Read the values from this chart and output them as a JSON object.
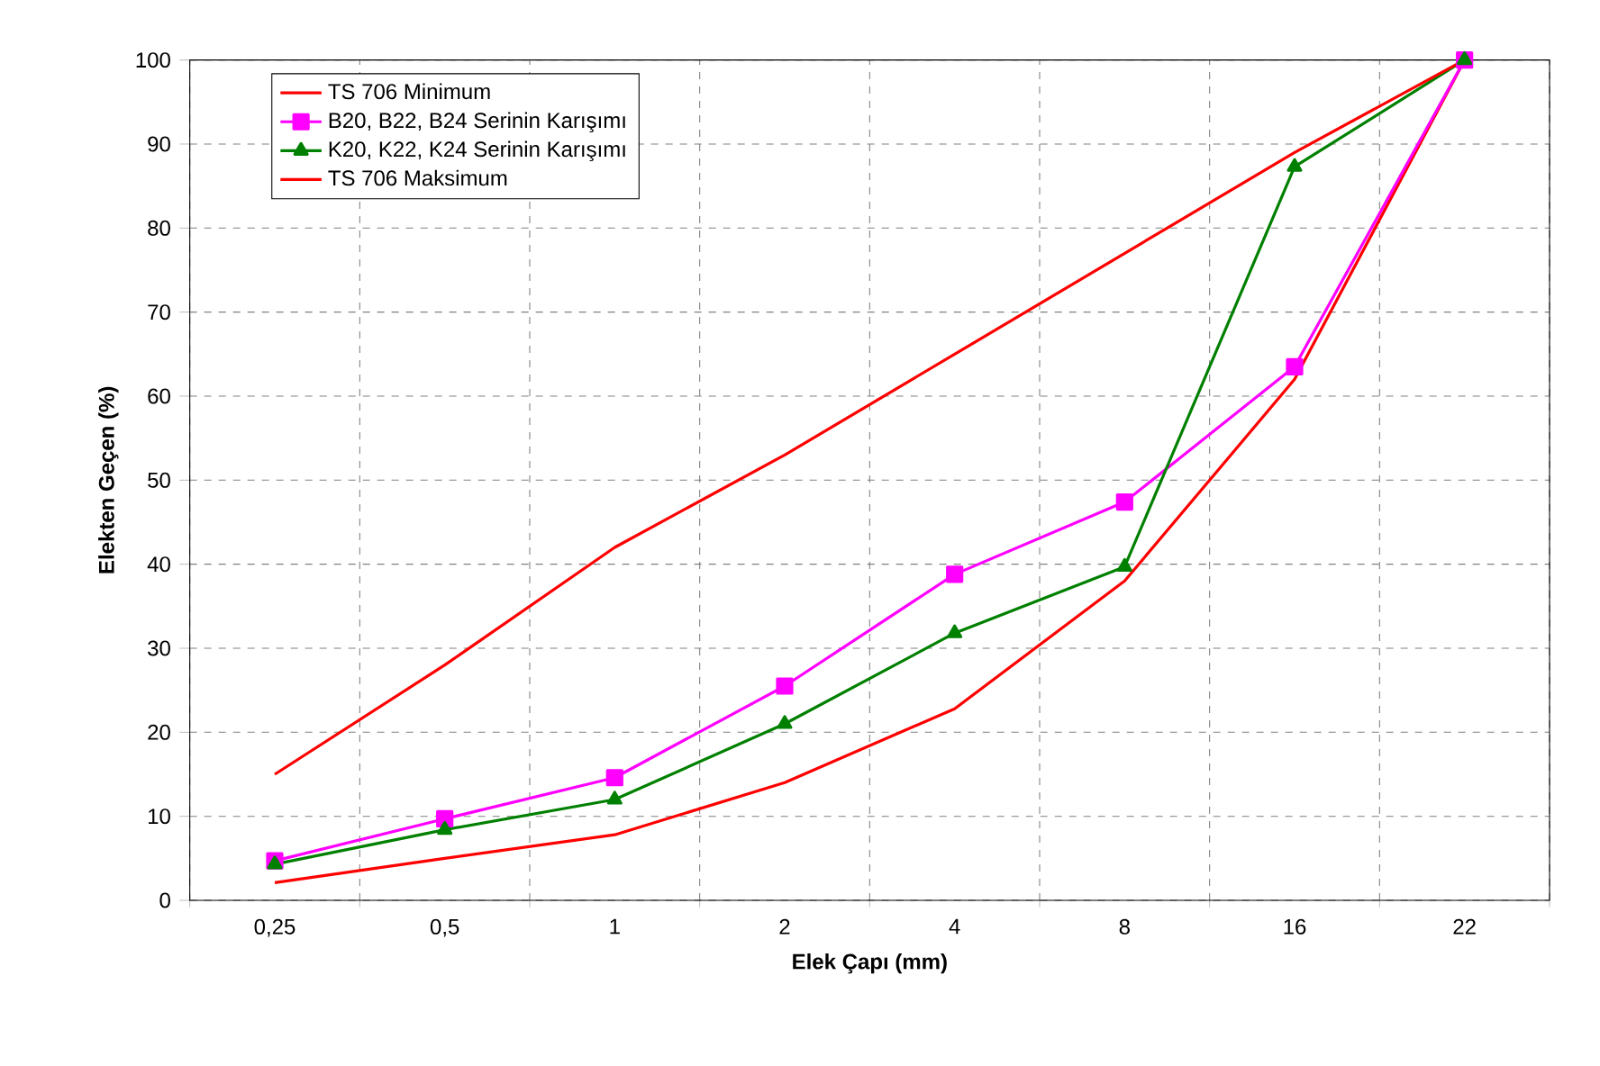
{
  "chart_data": {
    "type": "line",
    "xlabel": "Elek Çapı (mm)",
    "ylabel": "Elekten Geçen (%)",
    "categories": [
      "0,25",
      "0,5",
      "1",
      "2",
      "4",
      "8",
      "16",
      "22"
    ],
    "series": [
      {
        "name": "TS 706 Minimum",
        "color": "#ff0000",
        "marker": "none",
        "values": [
          2.1,
          5,
          7.8,
          14,
          22.8,
          38,
          62,
          100
        ]
      },
      {
        "name": "B20, B22, B24 Serinin Karışımı",
        "color": "#ff00ff",
        "marker": "square",
        "values": [
          4.7,
          9.7,
          14.6,
          25.5,
          38.8,
          47.4,
          63.5,
          100
        ]
      },
      {
        "name": "K20, K22, K24 Serinin Karışımı",
        "color": "#008000",
        "marker": "triangle",
        "values": [
          4.3,
          8.4,
          12,
          21,
          31.8,
          39.7,
          87.3,
          100
        ]
      },
      {
        "name": "TS 706 Maksimum",
        "color": "#ff0000",
        "marker": "none",
        "values": [
          15,
          28,
          42,
          53,
          65,
          77,
          89,
          100
        ]
      }
    ],
    "ylim": [
      0,
      100
    ],
    "yticks": [
      0,
      10,
      20,
      30,
      40,
      50,
      60,
      70,
      80,
      90,
      100
    ],
    "grid": true,
    "legend": "top left",
    "line_style": "solid"
  }
}
